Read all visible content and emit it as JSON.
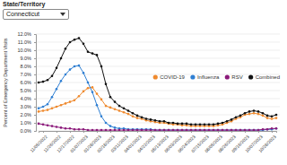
{
  "controls": {
    "label": "State/Territory",
    "selected": "Connecticut"
  },
  "chart_data": {
    "type": "line",
    "y_label": "Percent of Emergency Department Visits",
    "categories": [
      null,
      "11/05/2022",
      null,
      null,
      "11/26/2022",
      null,
      null,
      "12/17/2022",
      null,
      null,
      "01/07/2023",
      null,
      null,
      "01/28/2023",
      null,
      null,
      "02/18/2023",
      null,
      null,
      "03/11/2023",
      null,
      null,
      "04/01/2023",
      null,
      null,
      "04/22/2023",
      null,
      null,
      "05/13/2023",
      null,
      null,
      "06/03/2023",
      null,
      null,
      "06/24/2023",
      null,
      null,
      "07/15/2023",
      null,
      null,
      "08/05/2023",
      null,
      null,
      "08/26/2023",
      null,
      null,
      "09/16/2023",
      null,
      null,
      "10/07/2023",
      null,
      null,
      "10/28/2023",
      null
    ],
    "series": [
      {
        "name": "COVID-19",
        "color": "#ef8a2e",
        "values": [
          2.4,
          2.5,
          2.6,
          2.8,
          3.0,
          3.2,
          3.4,
          3.6,
          3.8,
          4.3,
          4.9,
          5.3,
          5.4,
          4.6,
          3.9,
          3.1,
          2.9,
          2.7,
          2.5,
          2.3,
          2.1,
          1.8,
          1.6,
          1.5,
          1.3,
          1.2,
          1.1,
          1.0,
          1.0,
          0.9,
          0.8,
          0.8,
          0.7,
          0.7,
          0.6,
          0.6,
          0.6,
          0.6,
          0.6,
          0.6,
          0.7,
          0.8,
          1.0,
          1.2,
          1.5,
          1.7,
          2.0,
          2.1,
          2.2,
          2.1,
          1.9,
          1.6,
          1.5,
          1.6
        ]
      },
      {
        "name": "Influenza",
        "color": "#2f7fd3",
        "values": [
          2.8,
          3.0,
          3.3,
          4.2,
          5.2,
          6.2,
          7.0,
          7.6,
          8.0,
          8.1,
          7.2,
          6.0,
          4.8,
          3.2,
          1.8,
          1.0,
          0.6,
          0.4,
          0.3,
          0.3,
          0.2,
          0.2,
          0.2,
          0.2,
          0.2,
          0.2,
          0.1,
          0.1,
          0.1,
          0.1,
          0.1,
          0.1,
          0.1,
          0.1,
          0.1,
          0.1,
          0.1,
          0.1,
          0.1,
          0.1,
          0.1,
          0.1,
          0.1,
          0.1,
          0.1,
          0.1,
          0.1,
          0.1,
          0.1,
          0.1,
          0.1,
          0.2,
          0.2,
          0.3
        ]
      },
      {
        "name": "RSV",
        "color": "#8b1a7a",
        "values": [
          0.9,
          0.8,
          0.7,
          0.6,
          0.5,
          0.4,
          0.3,
          0.3,
          0.2,
          0.2,
          0.2,
          0.1,
          0.1,
          0.1,
          0.1,
          0.1,
          0.1,
          0.1,
          0.1,
          0.1,
          0.1,
          0.1,
          0.1,
          0.1,
          0.1,
          0.1,
          0.1,
          0.1,
          0.1,
          0.1,
          0.1,
          0.1,
          0.1,
          0.1,
          0.1,
          0.1,
          0.1,
          0.1,
          0.1,
          0.1,
          0.1,
          0.1,
          0.1,
          0.1,
          0.1,
          0.1,
          0.1,
          0.1,
          0.1,
          0.1,
          0.2,
          0.2,
          0.3,
          0.3
        ]
      },
      {
        "name": "Combined",
        "color": "#111111",
        "values": [
          6.0,
          6.1,
          6.3,
          6.8,
          7.8,
          9.0,
          10.2,
          11.0,
          11.3,
          11.5,
          10.8,
          9.8,
          9.6,
          9.4,
          8.0,
          5.8,
          4.2,
          3.6,
          3.1,
          2.8,
          2.5,
          2.2,
          1.9,
          1.7,
          1.5,
          1.4,
          1.3,
          1.2,
          1.2,
          1.0,
          1.0,
          0.9,
          0.9,
          0.9,
          0.8,
          0.8,
          0.8,
          0.8,
          0.8,
          0.8,
          0.9,
          1.0,
          1.2,
          1.4,
          1.7,
          1.9,
          2.2,
          2.4,
          2.5,
          2.4,
          2.2,
          1.9,
          1.8,
          2.0
        ]
      }
    ],
    "ylim": [
      0,
      12
    ],
    "yticks": [
      {
        "value": 0,
        "label": "0.0%"
      },
      {
        "value": 1,
        "label": "1.0%"
      },
      {
        "value": 2,
        "label": "2.0%"
      },
      {
        "value": 3,
        "label": "3.0%"
      },
      {
        "value": 4,
        "label": "4.0%"
      },
      {
        "value": 5,
        "label": "5.0%"
      },
      {
        "value": 6,
        "label": "6.0%"
      },
      {
        "value": 7,
        "label": "7.0%"
      },
      {
        "value": 8,
        "label": "8.0%"
      },
      {
        "value": 9,
        "label": "9.0%"
      },
      {
        "value": 10,
        "label": "10.0%"
      },
      {
        "value": 11,
        "label": "11.0%"
      },
      {
        "value": 12,
        "label": "12.0%"
      }
    ],
    "grid": true,
    "legend": "top-right",
    "marker": "circle"
  }
}
